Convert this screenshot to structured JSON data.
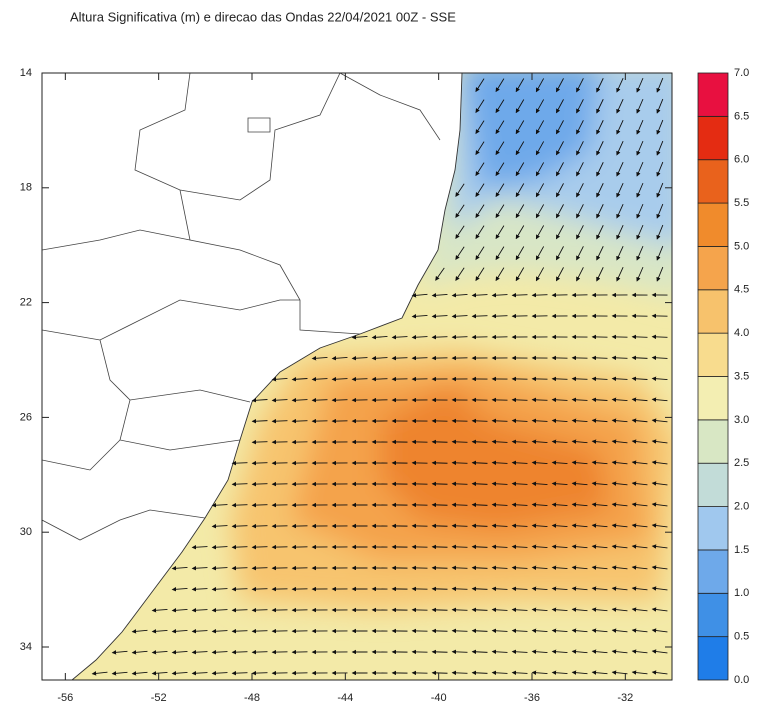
{
  "title": "Altura Significativa (m) e direcao das Ondas 22/04/2021 00Z - SSE",
  "map": {
    "lon_lim": [
      -57,
      -30
    ],
    "lat_lim": [
      14,
      35.15
    ],
    "lon_ticks": [
      -56,
      -52,
      -48,
      -44,
      -40,
      -36,
      -32
    ],
    "lat_ticks": [
      14,
      18,
      22,
      26,
      30,
      34
    ]
  },
  "legend": {
    "levels": [
      {
        "value": 0,
        "label": "0.0"
      },
      {
        "value": 0.5,
        "label": "0.5"
      },
      {
        "value": 1,
        "label": "1.0"
      },
      {
        "value": 1.5,
        "label": "1.5"
      },
      {
        "value": 2,
        "label": "2.0"
      },
      {
        "value": 2.5,
        "label": "2.5"
      },
      {
        "value": 3,
        "label": "3.0"
      },
      {
        "value": 3.5,
        "label": "3.5"
      },
      {
        "value": 4,
        "label": "4.0"
      },
      {
        "value": 4.5,
        "label": "4.5"
      },
      {
        "value": 5,
        "label": "5.0"
      },
      {
        "value": 5.5,
        "label": "5.5"
      },
      {
        "value": 6,
        "label": "6.0"
      },
      {
        "value": 6.5,
        "label": "6.5"
      },
      {
        "value": 7,
        "label": "7.0"
      }
    ],
    "colors": [
      "#1f7de8",
      "#3f90e6",
      "#6ea9ea",
      "#a0c8ee",
      "#c2dcd8",
      "#d8e7c4",
      "#f3eeb2",
      "#f8dc8e",
      "#f7c26c",
      "#f5a44c",
      "#f08b2c",
      "#e9621c",
      "#e42c12",
      "#e81040"
    ]
  }
}
